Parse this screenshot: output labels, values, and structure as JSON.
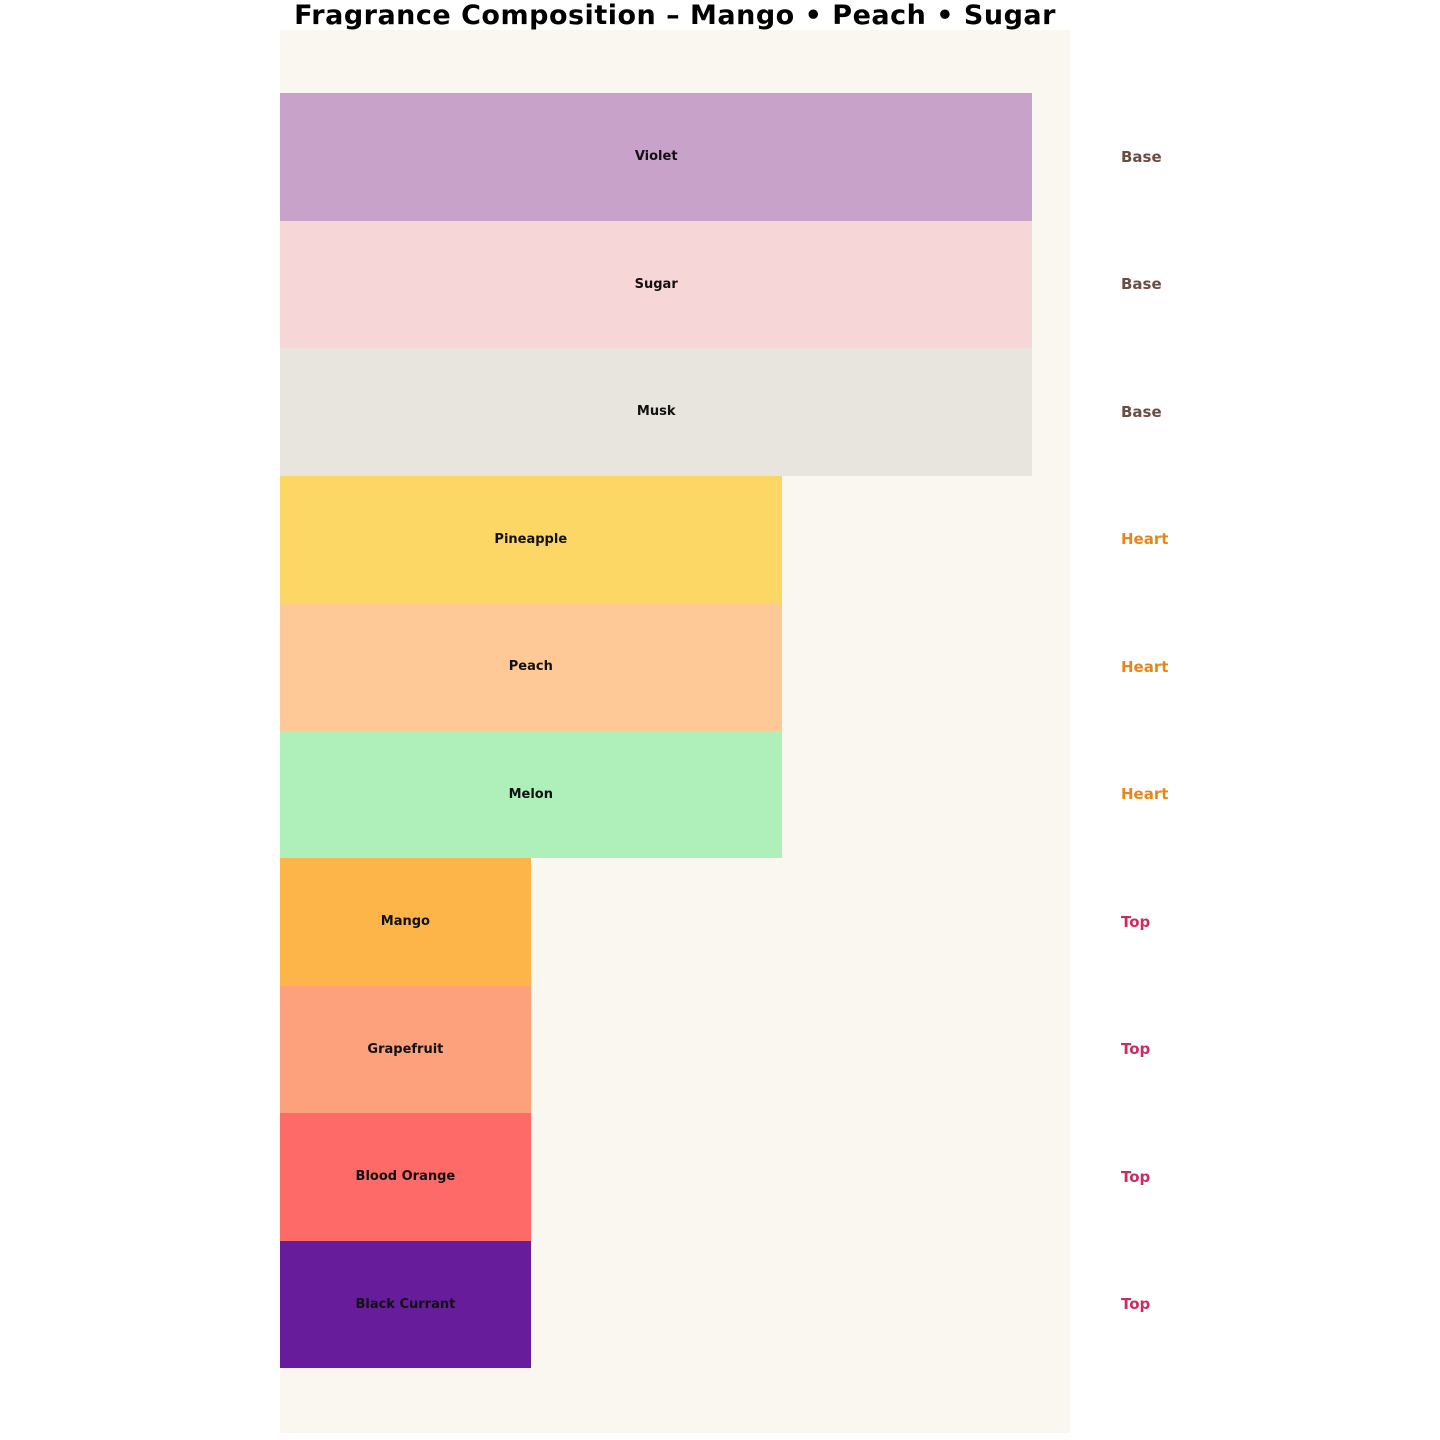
{
  "title": "Fragrance Composition – Mango • Peach • Sugar",
  "colors": {
    "page_background": "#ffffff",
    "plot_background": "#faf6f0",
    "title_text": "#000000",
    "bar_label_text": "#111111"
  },
  "chart_data": {
    "type": "bar",
    "orientation": "horizontal",
    "title": "Fragrance Composition – Mango • Peach • Sugar",
    "xlabel": "",
    "ylabel": "",
    "xlim": [
      0,
      3.15
    ],
    "grid": false,
    "legend": "none",
    "bars": [
      {
        "label": "Violet",
        "tier": "Base",
        "value": 3,
        "color": "#c8a2c8"
      },
      {
        "label": "Sugar",
        "tier": "Base",
        "value": 3,
        "color": "#f7d6d8"
      },
      {
        "label": "Musk",
        "tier": "Base",
        "value": 3,
        "color": "#e8e5de"
      },
      {
        "label": "Pineapple",
        "tier": "Heart",
        "value": 2,
        "color": "#fdd766"
      },
      {
        "label": "Peach",
        "tier": "Heart",
        "value": 2,
        "color": "#fec997"
      },
      {
        "label": "Melon",
        "tier": "Heart",
        "value": 2,
        "color": "#aff0ba"
      },
      {
        "label": "Mango",
        "tier": "Top",
        "value": 1,
        "color": "#fdb449"
      },
      {
        "label": "Grapefruit",
        "tier": "Top",
        "value": 1,
        "color": "#fda07c"
      },
      {
        "label": "Blood Orange",
        "tier": "Top",
        "value": 1,
        "color": "#fd6a68"
      },
      {
        "label": "Black Currant",
        "tier": "Top",
        "value": 1,
        "color": "#671d9b"
      }
    ],
    "tier_colors": {
      "Base": "#6d4c41",
      "Heart": "#e8861a",
      "Top": "#cc2b5e"
    }
  }
}
